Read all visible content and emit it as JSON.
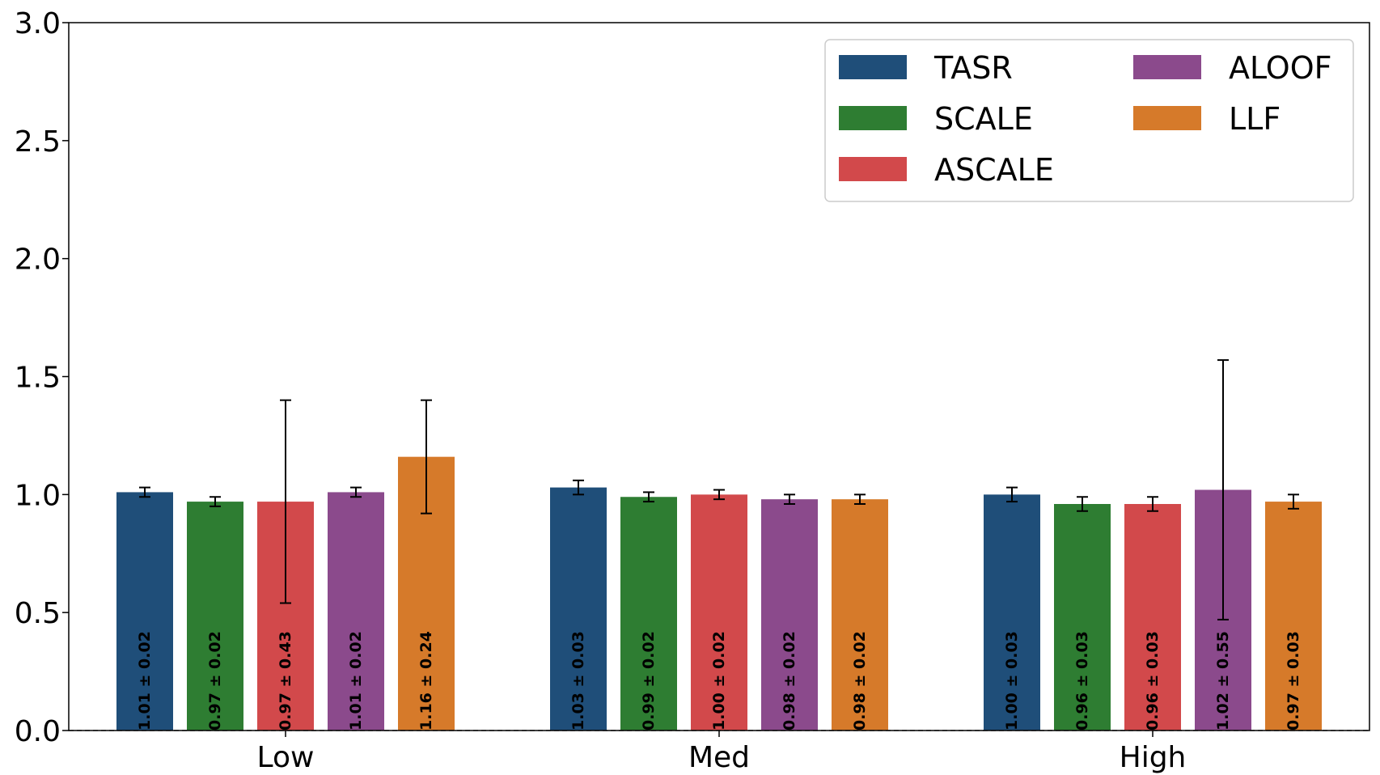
{
  "chart_data": {
    "type": "bar",
    "categories": [
      "Low",
      "Med",
      "High"
    ],
    "series": [
      {
        "name": "TASR",
        "color": "#1f4e79",
        "values": [
          1.01,
          1.03,
          1.0
        ],
        "errors": [
          0.02,
          0.03,
          0.03
        ],
        "labels": [
          "1.01 ± 0.02",
          "1.03 ± 0.03",
          "1.00 ± 0.03"
        ]
      },
      {
        "name": "SCALE",
        "color": "#2e7d32",
        "values": [
          0.97,
          0.99,
          0.96
        ],
        "errors": [
          0.02,
          0.02,
          0.03
        ],
        "labels": [
          "0.97 ± 0.02",
          "0.99 ± 0.02",
          "0.96 ± 0.03"
        ]
      },
      {
        "name": "ASCALE",
        "color": "#d2494b",
        "values": [
          0.97,
          1.0,
          0.96
        ],
        "errors": [
          0.43,
          0.02,
          0.03
        ],
        "labels": [
          "0.97 ± 0.43",
          "1.00 ± 0.02",
          "0.96 ± 0.03"
        ]
      },
      {
        "name": "ALOOF",
        "color": "#8b4a8c",
        "values": [
          1.01,
          0.98,
          1.02
        ],
        "errors": [
          0.02,
          0.02,
          0.55
        ],
        "labels": [
          "1.01 ± 0.02",
          "0.98 ± 0.02",
          "1.02 ± 0.55"
        ]
      },
      {
        "name": "LLF",
        "color": "#d67a2a",
        "values": [
          1.16,
          0.98,
          0.97
        ],
        "errors": [
          0.24,
          0.02,
          0.03
        ],
        "labels": [
          "1.16 ± 0.24",
          "0.98 ± 0.02",
          "0.97 ± 0.03"
        ]
      }
    ],
    "yticks": [
      "0.0",
      "0.5",
      "1.0",
      "1.5",
      "2.0",
      "2.5",
      "3.0"
    ],
    "ylim": [
      0,
      3.0
    ],
    "xlabel": "",
    "ylabel": "",
    "title": "",
    "legend": {
      "placement": "top-right",
      "columns": 2
    },
    "reference_line": {
      "y": 0,
      "style": "dashed"
    },
    "grid": false
  }
}
